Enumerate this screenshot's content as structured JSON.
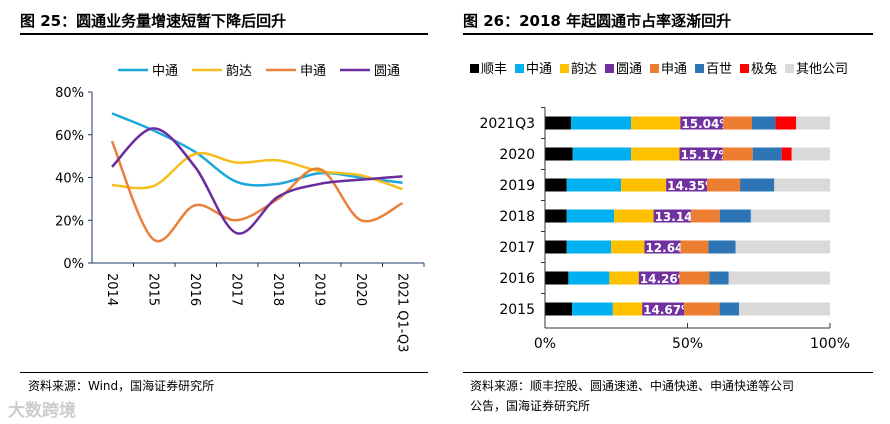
{
  "left": {
    "title": "图 25：圆通业务量增速短暂下降后回升",
    "source": "资料来源：Wind，国海证券研究所"
  },
  "right": {
    "title": "图 26：2018 年起圆通市占率逐渐回升",
    "source_line1": "资料来源：顺丰控股、圆通速递、中通快递、申通快递等公司",
    "source_line2": "公告，国海证券研究所"
  },
  "watermark": "大数跨境",
  "chart_data": [
    {
      "type": "line",
      "title": "圆通业务量增速短暂下降后回升",
      "categories": [
        "2014",
        "2015",
        "2016",
        "2017",
        "2018",
        "2019",
        "2020",
        "2021 Q1-Q3"
      ],
      "ylim": [
        0,
        80
      ],
      "yticks": [
        "0%",
        "20%",
        "40%",
        "60%",
        "80%"
      ],
      "legend": "top",
      "series": [
        {
          "name": "中通",
          "color": "#1CA8DD",
          "values": [
            70,
            62,
            52,
            38,
            37,
            42,
            40,
            37.5
          ]
        },
        {
          "name": "韵达",
          "color": "#F5BE1C",
          "values": [
            36.5,
            36,
            51,
            47,
            48,
            43,
            41,
            34.5
          ]
        },
        {
          "name": "申通",
          "color": "#E8803A",
          "values": [
            57,
            11,
            27,
            20,
            30,
            44,
            20,
            28
          ]
        },
        {
          "name": "圆通",
          "color": "#6A2C9E",
          "values": [
            45,
            63,
            45,
            14,
            31,
            37,
            39,
            40.5
          ]
        }
      ]
    },
    {
      "type": "bar",
      "stacked": true,
      "orientation": "horizontal",
      "title": "2018 年起圆通市占率逐渐回升",
      "categories": [
        "2021Q3",
        "2020",
        "2019",
        "2018",
        "2017",
        "2016",
        "2015"
      ],
      "xlim": [
        0,
        100
      ],
      "xticks": [
        "0%",
        "50%",
        "100%"
      ],
      "legend": "top",
      "series": [
        {
          "name": "顺丰",
          "color": "#000000",
          "values": [
            9.1,
            9.7,
            7.6,
            7.6,
            7.6,
            8.2,
            9.5
          ]
        },
        {
          "name": "中通",
          "color": "#00B0F0",
          "values": [
            21.1,
            20.5,
            19.1,
            16.7,
            15.6,
            14.4,
            14.3
          ]
        },
        {
          "name": "韵达",
          "color": "#FFC000",
          "values": [
            17.3,
            17.0,
            15.8,
            13.8,
            11.7,
            10.3,
            10.3
          ]
        },
        {
          "name": "圆通",
          "color": "#7030A0",
          "values": [
            15.04,
            15.17,
            14.35,
            13.14,
            12.64,
            14.26,
            14.67
          ]
        },
        {
          "name": "申通",
          "color": "#ED7D31",
          "values": [
            10.1,
            10.5,
            11.6,
            10.1,
            9.8,
            10.5,
            12.5
          ]
        },
        {
          "name": "百世",
          "color": "#2E75B6",
          "values": [
            8.2,
            10.2,
            12.0,
            10.9,
            9.5,
            6.8,
            6.8
          ]
        },
        {
          "name": "极兔",
          "color": "#FF0000",
          "values": [
            7.3,
            3.5,
            0,
            0,
            0,
            0,
            0
          ]
        },
        {
          "name": "其他公司",
          "color": "#D9D9D9",
          "values": [
            11.86,
            13.43,
            19.55,
            27.76,
            33.16,
            35.54,
            31.93
          ]
        }
      ],
      "labels": [
        "15.04%",
        "15.17%",
        "14.35%",
        "13.14%",
        "12.64%",
        "14.26%",
        "14.67%"
      ]
    }
  ]
}
